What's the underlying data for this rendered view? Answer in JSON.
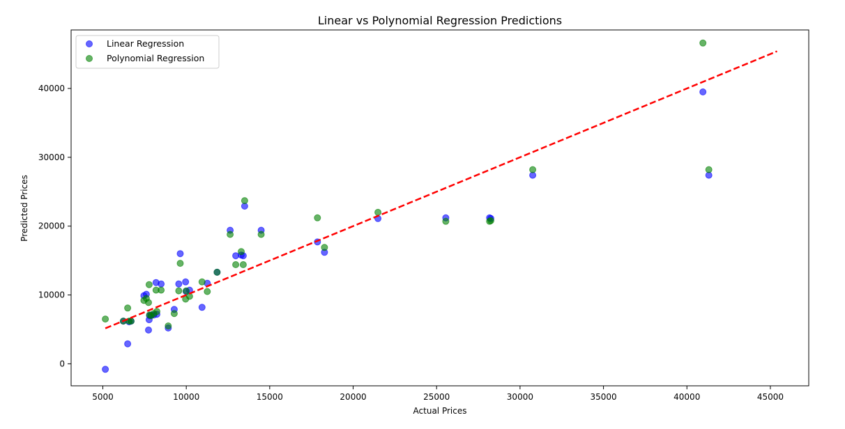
{
  "chart_data": {
    "type": "scatter",
    "title": "Linear vs Polynomial Regression Predictions",
    "xlabel": "Actual Prices",
    "ylabel": "Predicted Prices",
    "xlim": [
      3100,
      47300
    ],
    "ylim": [
      -3200,
      48500
    ],
    "xticks": [
      5000,
      10000,
      15000,
      20000,
      25000,
      30000,
      35000,
      40000,
      45000
    ],
    "yticks": [
      0,
      10000,
      20000,
      30000,
      40000
    ],
    "grid": false,
    "legend_position": "upper-left",
    "reference_line": {
      "x": [
        5151,
        45400
      ],
      "y": [
        5151,
        45400
      ],
      "color": "#ff0000",
      "style": "dashed"
    },
    "series": [
      {
        "name": "Linear Regression",
        "color": "#0000ff",
        "points": [
          [
            5151,
            -800
          ],
          [
            6229,
            6200
          ],
          [
            6488,
            2900
          ],
          [
            6575,
            6100
          ],
          [
            6692,
            6200
          ],
          [
            7463,
            9900
          ],
          [
            7609,
            10100
          ],
          [
            7738,
            4900
          ],
          [
            7775,
            6400
          ],
          [
            7799,
            7000
          ],
          [
            7898,
            7100
          ],
          [
            8058,
            7100
          ],
          [
            8189,
            11800
          ],
          [
            8238,
            7200
          ],
          [
            8495,
            11600
          ],
          [
            8921,
            5200
          ],
          [
            9279,
            7900
          ],
          [
            9549,
            11600
          ],
          [
            9639,
            16000
          ],
          [
            9960,
            11900
          ],
          [
            9995,
            10500
          ],
          [
            10198,
            10700
          ],
          [
            10945,
            8200
          ],
          [
            11259,
            11700
          ],
          [
            11850,
            13300
          ],
          [
            12629,
            19400
          ],
          [
            12964,
            15700
          ],
          [
            13295,
            15800
          ],
          [
            13415,
            15700
          ],
          [
            13499,
            22900
          ],
          [
            14489,
            19400
          ],
          [
            17859,
            17700
          ],
          [
            18280,
            16200
          ],
          [
            21485,
            21100
          ],
          [
            25552,
            21200
          ],
          [
            28176,
            21200
          ],
          [
            28248,
            21100
          ],
          [
            30760,
            27400
          ],
          [
            40960,
            39500
          ],
          [
            41315,
            27400
          ]
        ]
      },
      {
        "name": "Polynomial Regression",
        "color": "#008000",
        "points": [
          [
            5151,
            6500
          ],
          [
            6229,
            6200
          ],
          [
            6488,
            8100
          ],
          [
            6575,
            6200
          ],
          [
            6692,
            6200
          ],
          [
            7463,
            9200
          ],
          [
            7609,
            9500
          ],
          [
            7738,
            8900
          ],
          [
            7775,
            11500
          ],
          [
            7799,
            7100
          ],
          [
            7898,
            7000
          ],
          [
            8058,
            7300
          ],
          [
            8189,
            10700
          ],
          [
            8238,
            7600
          ],
          [
            8495,
            10700
          ],
          [
            8921,
            5500
          ],
          [
            9279,
            7300
          ],
          [
            9549,
            10600
          ],
          [
            9639,
            14600
          ],
          [
            9960,
            9400
          ],
          [
            9995,
            10600
          ],
          [
            10198,
            9800
          ],
          [
            10945,
            11900
          ],
          [
            11259,
            10500
          ],
          [
            11850,
            13300
          ],
          [
            12629,
            18800
          ],
          [
            12964,
            14400
          ],
          [
            13295,
            16300
          ],
          [
            13415,
            14400
          ],
          [
            13499,
            23700
          ],
          [
            14489,
            18800
          ],
          [
            17859,
            21200
          ],
          [
            18280,
            16900
          ],
          [
            21485,
            22000
          ],
          [
            25552,
            20700
          ],
          [
            28176,
            20700
          ],
          [
            28248,
            20800
          ],
          [
            30760,
            28200
          ],
          [
            40960,
            46600
          ],
          [
            41315,
            28200
          ]
        ]
      }
    ]
  }
}
